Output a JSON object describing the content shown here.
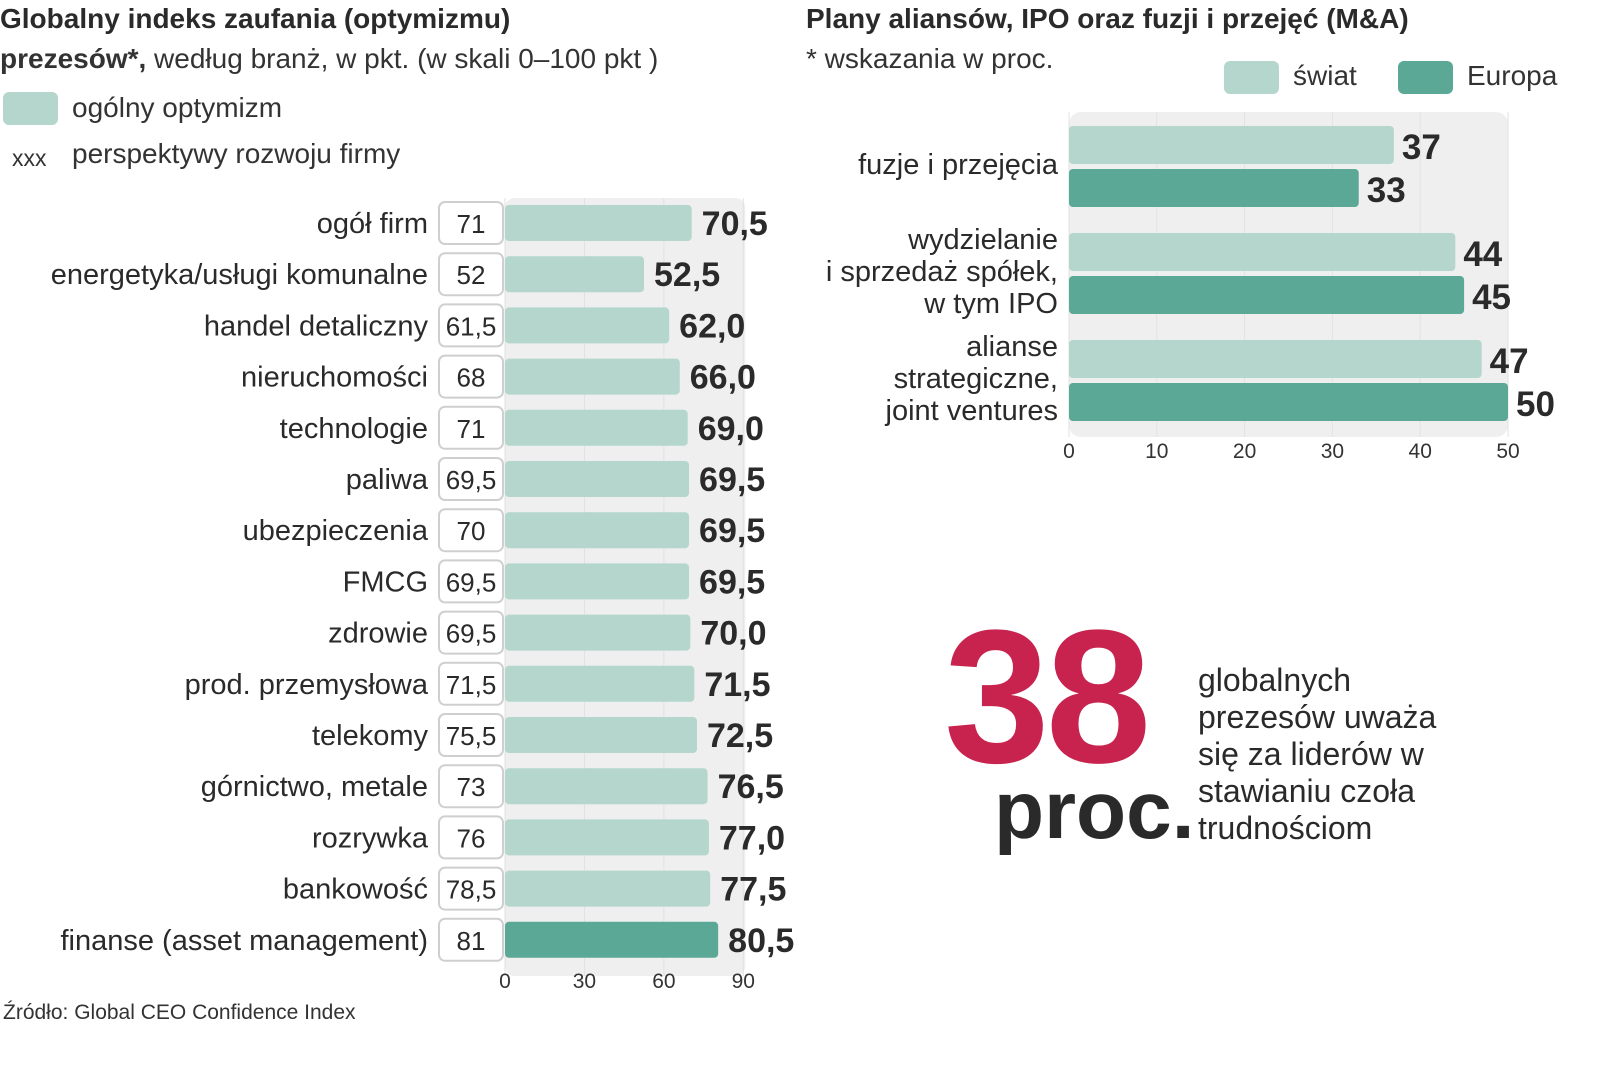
{
  "colors": {
    "light": "#b4d6cd",
    "dark": "#5ba896",
    "panel": "#efefef",
    "accent": "#c8234e",
    "text": "#2a2a2a"
  },
  "left": {
    "title_line1": "Globalny indeks zaufania (optymizmu)",
    "title_bold2": "prezesów*,",
    "title_rest2": " według branż, w pkt. (w skali 0–100 pkt )",
    "legend_general": "ogólny optymizm",
    "legend_xxx": "xxx",
    "legend_perspective": "perspektywy rozwoju firmy"
  },
  "right": {
    "title": "Plany aliansów, IPO oraz fuzji i przejęć (M&A)",
    "subtitle": "* wskazania w proc.",
    "legend_world": "świat",
    "legend_europe": "Europa"
  },
  "callout": {
    "number": "38",
    "unit": "proc.",
    "text_lines": [
      "globalnych",
      "prezesów uważa",
      "się za liderów w",
      "stawianiu czoła",
      "trudnościom"
    ]
  },
  "source": "Źródło: Global CEO Confidence Index",
  "chart_data": [
    {
      "type": "bar",
      "orientation": "horizontal",
      "title": "Globalny indeks zaufania (optymizmu) prezesów*, według branż, w pkt. (w skali 0–100 pkt )",
      "categories": [
        "ogół firm",
        "energetyka/usługi komunalne",
        "handel detaliczny",
        "nieruchomości",
        "technologie",
        "paliwa",
        "ubezpieczenia",
        "FMCG",
        "zdrowie",
        "prod. przemysłowa",
        "telekomy",
        "górnictwo, metale",
        "rozrywka",
        "bankowość",
        "finanse (asset management)"
      ],
      "series": [
        {
          "name": "ogólny optymizm",
          "values": [
            70.5,
            52.5,
            62.0,
            66.0,
            69.0,
            69.5,
            69.5,
            69.5,
            70.0,
            71.5,
            72.5,
            76.5,
            77.0,
            77.5,
            80.5
          ]
        },
        {
          "name": "perspektywy rozwoju firmy",
          "values": [
            71,
            52,
            61.5,
            68,
            71,
            69.5,
            70,
            69.5,
            69.5,
            71.5,
            75.5,
            73,
            76,
            78.5,
            81
          ]
        }
      ],
      "value_labels": [
        "70,5",
        "52,5",
        "62,0",
        "66,0",
        "69,0",
        "69,5",
        "69,5",
        "69,5",
        "70,0",
        "71,5",
        "72,5",
        "76,5",
        "77,0",
        "77,5",
        "80,5"
      ],
      "perspective_labels": [
        "71",
        "52",
        "61,5",
        "68",
        "71",
        "69,5",
        "70",
        "69,5",
        "69,5",
        "71,5",
        "75,5",
        "73",
        "76",
        "78,5",
        "81"
      ],
      "highlight_index": 14,
      "xlim": [
        0,
        90
      ],
      "xticks": [
        0,
        30,
        60,
        90
      ]
    },
    {
      "type": "bar",
      "orientation": "horizontal",
      "title": "Plany aliansów, IPO oraz fuzji i przejęć (M&A)",
      "categories": [
        [
          "fuzje i przejęcia"
        ],
        [
          "wydzielanie",
          "i sprzedaż spółek,",
          "w tym IPO"
        ],
        [
          "alianse",
          "strategiczne,",
          "joint ventures"
        ]
      ],
      "series": [
        {
          "name": "świat",
          "values": [
            37,
            44,
            47
          ]
        },
        {
          "name": "Europa",
          "values": [
            33,
            45,
            50
          ]
        }
      ],
      "xlim": [
        0,
        50
      ],
      "xticks": [
        0,
        10,
        20,
        30,
        40,
        50
      ],
      "unit": "proc."
    }
  ]
}
